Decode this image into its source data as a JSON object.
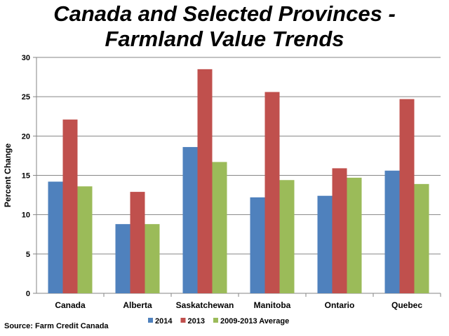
{
  "chart_data": {
    "type": "bar",
    "title": "Canada and Selected Provinces -",
    "subtitle": "Farmland Value Trends",
    "xlabel": "",
    "ylabel": "Percent Change",
    "ylim": [
      0,
      30
    ],
    "yticks": [
      "0",
      "5",
      "10",
      "15",
      "20",
      "25",
      "30"
    ],
    "categories": [
      "Canada",
      "Alberta",
      "Saskatchewan",
      "Manitoba",
      "Ontario",
      "Quebec"
    ],
    "series": [
      {
        "name": "2014",
        "color": "#4F81BD",
        "values": [
          14.2,
          8.8,
          18.6,
          12.2,
          12.4,
          15.6
        ]
      },
      {
        "name": "2013",
        "color": "#C0504D",
        "values": [
          22.1,
          12.9,
          28.5,
          25.6,
          15.9,
          24.7
        ]
      },
      {
        "name": "2009-2013 Average",
        "color": "#9BBB59",
        "values": [
          13.6,
          8.8,
          16.7,
          14.4,
          14.7,
          13.9
        ]
      }
    ],
    "grid": true,
    "legend_position": "bottom",
    "source": "Source: Farm Credit Canada"
  }
}
